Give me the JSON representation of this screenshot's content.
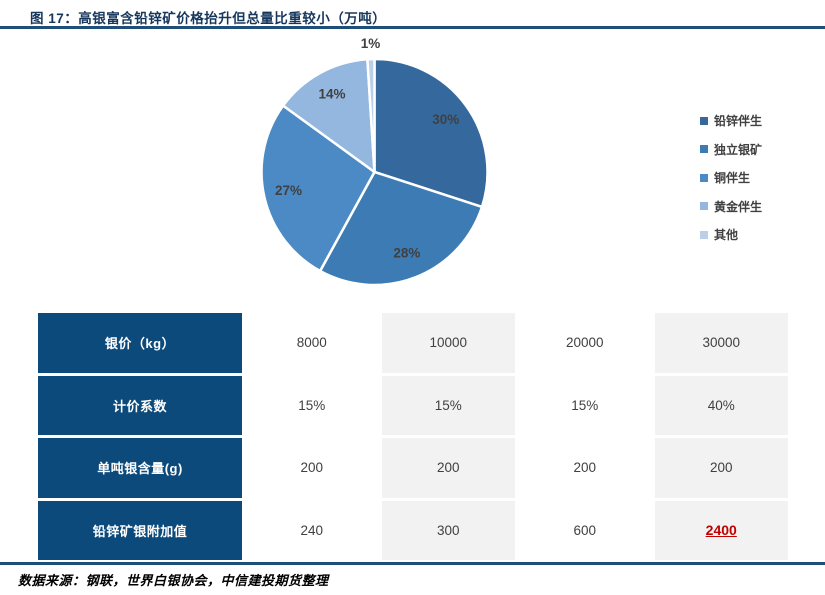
{
  "figure": {
    "title": "图 17：高银富含铅锌矿价格抬升但总量比重较小（万吨）",
    "source": "数据来源：钢联，世界白银协会，中信建投期货整理"
  },
  "chart_data": {
    "type": "pie",
    "title": "",
    "categories": [
      "铅锌伴生",
      "独立银矿",
      "铜伴生",
      "黄金伴生",
      "其他"
    ],
    "values": [
      30,
      28,
      27,
      14,
      1
    ],
    "labels": [
      "30%",
      "28%",
      "27%",
      "14%",
      "1%"
    ],
    "colors": [
      "#35689C",
      "#3D7BB4",
      "#4C8AC6",
      "#94B7DF",
      "#BCCFE9"
    ],
    "legend_position": "right",
    "label_color": "#404040"
  },
  "table": {
    "row_headers": [
      "银价（kg）",
      "计价系数",
      "单吨银含量(g)",
      "铅锌矿银附加值"
    ],
    "rows": [
      [
        "8000",
        "10000",
        "20000",
        "30000"
      ],
      [
        "15%",
        "15%",
        "15%",
        "40%"
      ],
      [
        "200",
        "200",
        "200",
        "200"
      ],
      [
        "240",
        "300",
        "600",
        "2400"
      ]
    ],
    "highlight_cell": {
      "row": 3,
      "col": 3,
      "color": "#C00000"
    }
  },
  "colors": {
    "accent_navy": "#1F4E79",
    "table_header_bg": "#0D4A7C",
    "table_alt_bg": "#F2F2F2",
    "title_text": "#16365C"
  }
}
